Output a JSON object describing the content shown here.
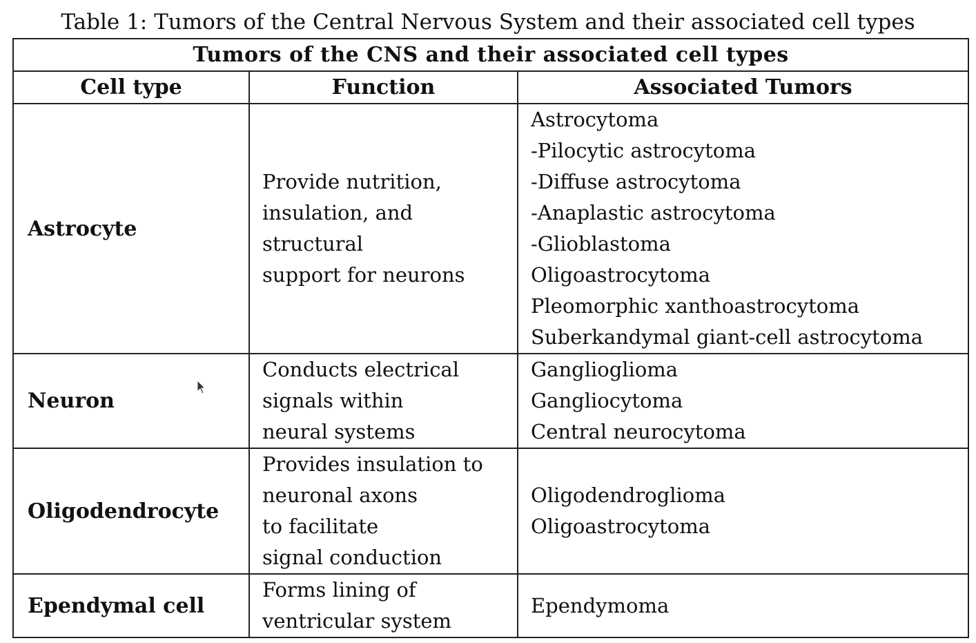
{
  "caption": "Table 1: Tumors of the Central Nervous System and their associated cell types",
  "table": {
    "title": "Tumors of the CNS and their associated cell types",
    "headers": [
      "Cell type",
      "Function",
      "Associated Tumors"
    ],
    "rows": [
      {
        "cell_type": "Astrocyte",
        "function": [
          "Provide nutrition,",
          "insulation, and",
          "structural",
          "support for neurons"
        ],
        "tumors": [
          "Astrocytoma",
          "-Pilocytic astrocytoma",
          "-Diffuse astrocytoma",
          "-Anaplastic astrocytoma",
          "-Glioblastoma",
          "Oligoastrocytoma",
          "Pleomorphic xanthoastrocytoma",
          "Suberkandymal giant-cell astrocytoma"
        ]
      },
      {
        "cell_type": "Neuron",
        "function": [
          "Conducts electrical",
          "signals within",
          "neural systems"
        ],
        "tumors": [
          "Ganglioglioma",
          "Gangliocytoma",
          "Central neurocytoma"
        ]
      },
      {
        "cell_type": "Oligodendrocyte",
        "function": [
          "Provides insulation to",
          "neuronal axons",
          "to facilitate",
          "signal conduction"
        ],
        "tumors": [
          "Oligodendroglioma",
          "Oligoastrocytoma"
        ]
      },
      {
        "cell_type": "Ependymal cell",
        "function": [
          "Forms lining of",
          "ventricular system"
        ],
        "tumors": [
          "Ependymoma"
        ]
      }
    ]
  },
  "cursor_icon": "mouse-pointer-icon"
}
